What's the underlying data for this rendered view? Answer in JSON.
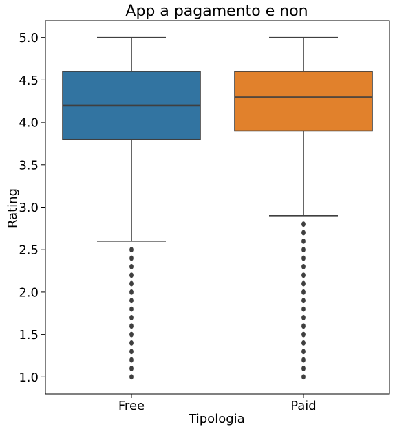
{
  "chart_data": {
    "type": "box",
    "title": "App a pagamento e non",
    "xlabel": "Tipologia",
    "ylabel": "Rating",
    "categories": [
      "Free",
      "Paid"
    ],
    "ylim": [
      0.8,
      5.2
    ],
    "yticks": [
      "1.0",
      "1.5",
      "2.0",
      "2.5",
      "3.0",
      "3.5",
      "4.0",
      "4.5",
      "5.0"
    ],
    "grid": false,
    "boxes": [
      {
        "category": "Free",
        "color": "#3274a1",
        "whisker_low": 2.6,
        "q1": 3.8,
        "median": 4.2,
        "q3": 4.6,
        "whisker_high": 5.0,
        "outliers": [
          1.0,
          1.1,
          1.2,
          1.3,
          1.4,
          1.5,
          1.6,
          1.7,
          1.8,
          1.9,
          2.0,
          2.1,
          2.2,
          2.3,
          2.4,
          2.5
        ]
      },
      {
        "category": "Paid",
        "color": "#e1812c",
        "whisker_low": 2.9,
        "q1": 3.9,
        "median": 4.3,
        "q3": 4.6,
        "whisker_high": 5.0,
        "outliers": [
          1.0,
          1.1,
          1.2,
          1.3,
          1.4,
          1.5,
          1.6,
          1.7,
          1.8,
          1.9,
          2.0,
          2.1,
          2.2,
          2.3,
          2.4,
          2.5,
          2.6,
          2.7,
          2.8
        ]
      }
    ],
    "line_color": "#3f3f3f"
  }
}
